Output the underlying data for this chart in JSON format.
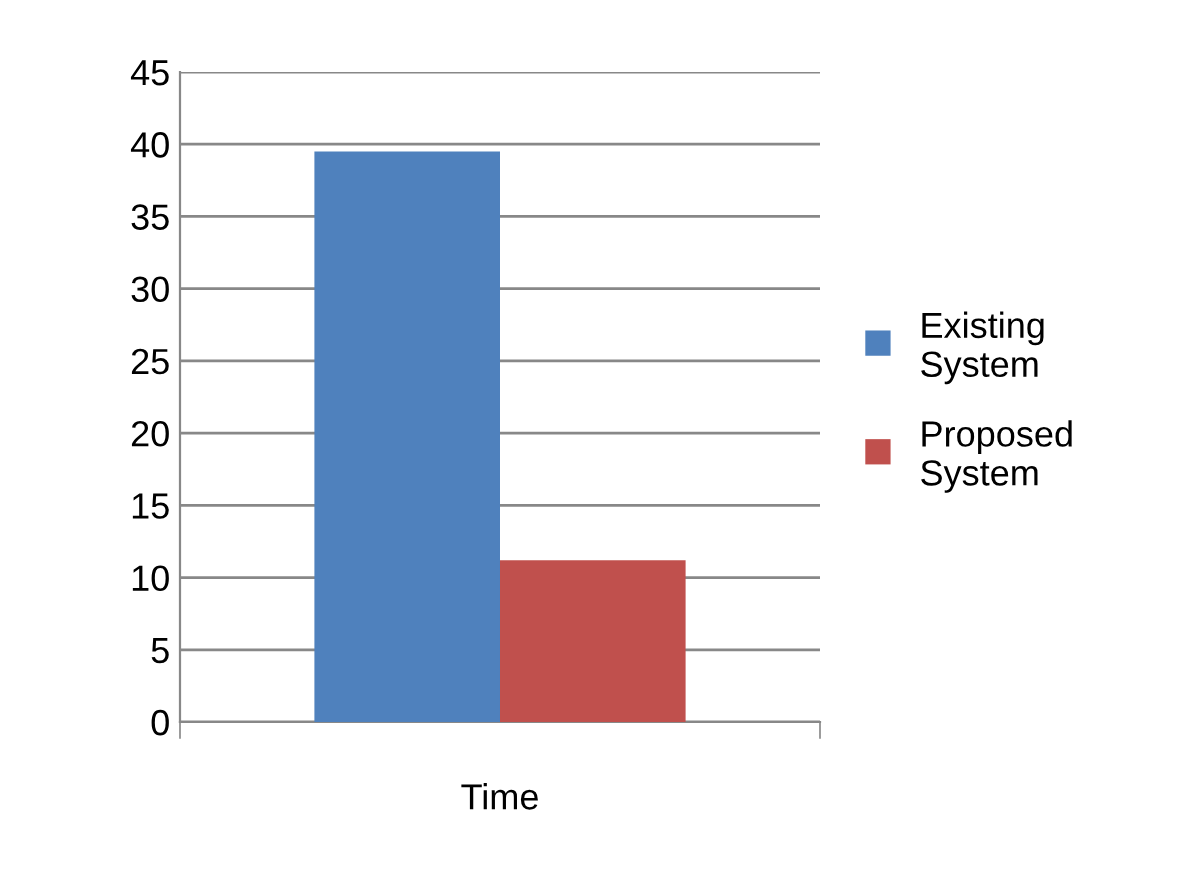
{
  "chart_data": {
    "type": "bar",
    "categories": [
      "Time"
    ],
    "series": [
      {
        "name": "Existing System",
        "color": "#4f81bd",
        "values": [
          39.5
        ]
      },
      {
        "name": "Proposed System",
        "color": "#c0504d",
        "values": [
          11.2
        ]
      }
    ],
    "ylim": [
      0,
      45
    ],
    "yticks": [
      0,
      5,
      10,
      15,
      20,
      25,
      30,
      35,
      40,
      45
    ],
    "grid": "y",
    "legend": "right"
  }
}
